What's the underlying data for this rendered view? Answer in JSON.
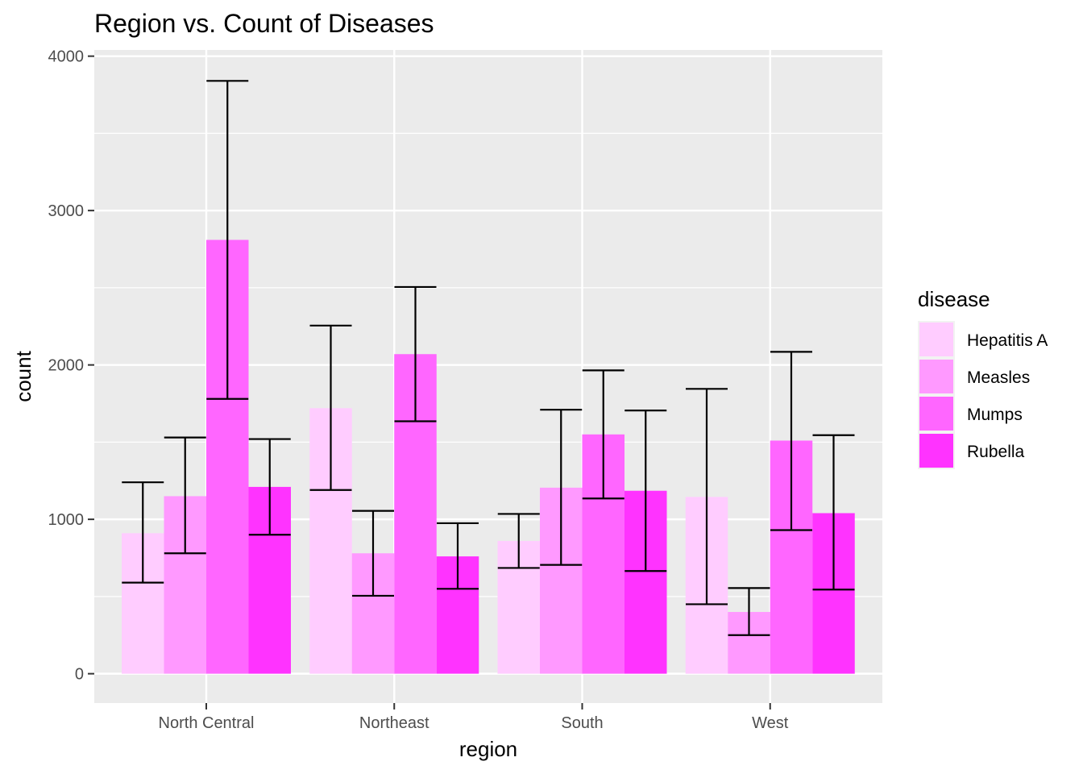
{
  "chart_data": {
    "type": "bar",
    "title": "Region vs. Count of Diseases",
    "xlabel": "region",
    "ylabel": "count",
    "ylim": [
      -190,
      4040
    ],
    "yticks": [
      0,
      1000,
      2000,
      3000,
      4000
    ],
    "categories": [
      "North Central",
      "Northeast",
      "South",
      "West"
    ],
    "legend": {
      "title": "disease",
      "placement": "right"
    },
    "grid": true,
    "series": [
      {
        "name": "Hepatitis A",
        "color": "#ffccff",
        "values": [
          910,
          1720,
          860,
          1145
        ],
        "error_low": [
          590,
          1190,
          685,
          450
        ],
        "error_high": [
          1240,
          2255,
          1035,
          1845
        ]
      },
      {
        "name": "Measles",
        "color": "#ff99ff",
        "values": [
          1150,
          780,
          1205,
          400
        ],
        "error_low": [
          780,
          505,
          705,
          250
        ],
        "error_high": [
          1530,
          1055,
          1710,
          555
        ]
      },
      {
        "name": "Mumps",
        "color": "#ff66ff",
        "values": [
          2810,
          2070,
          1550,
          1510
        ],
        "error_low": [
          1780,
          1635,
          1135,
          930
        ],
        "error_high": [
          3840,
          2505,
          1965,
          2085
        ]
      },
      {
        "name": "Rubella",
        "color": "#ff33ff",
        "values": [
          1210,
          760,
          1185,
          1040
        ],
        "error_low": [
          900,
          550,
          665,
          545
        ],
        "error_high": [
          1520,
          975,
          1705,
          1545
        ]
      }
    ]
  }
}
